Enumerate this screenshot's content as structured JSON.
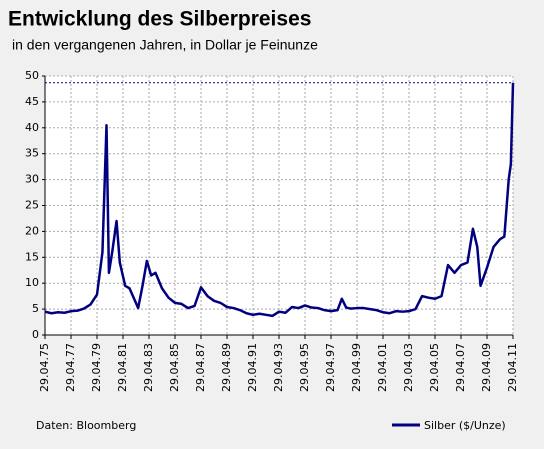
{
  "chart_data": {
    "type": "line",
    "title": "Entwicklung des Silberpreises",
    "subtitle": "in den vergangenen Jahren, in Dollar je Feinunze",
    "source": "Daten: Bloomberg",
    "x": [
      "29.04.75",
      "29.10.75",
      "29.04.76",
      "29.10.76",
      "29.04.77",
      "29.10.77",
      "29.04.78",
      "29.10.78",
      "29.04.79",
      "29.09.79",
      "21.01.80",
      "29.03.80",
      "29.06.80",
      "29.10.80",
      "29.01.81",
      "29.06.81",
      "29.10.81",
      "29.06.82",
      "29.10.82",
      "28.02.83",
      "29.06.83",
      "29.10.83",
      "29.04.84",
      "29.10.84",
      "29.04.85",
      "29.10.85",
      "29.04.86",
      "29.10.86",
      "29.04.87",
      "29.10.87",
      "29.04.88",
      "29.10.88",
      "29.04.89",
      "29.10.89",
      "29.04.90",
      "29.10.90",
      "29.04.91",
      "29.10.91",
      "29.04.92",
      "29.10.92",
      "29.04.93",
      "29.10.93",
      "29.04.94",
      "29.10.94",
      "29.04.95",
      "29.10.95",
      "29.04.96",
      "29.10.96",
      "29.04.97",
      "29.10.97",
      "27.02.98",
      "29.06.98",
      "29.10.98",
      "29.04.99",
      "29.10.99",
      "29.04.00",
      "29.10.00",
      "29.04.01",
      "29.10.01",
      "29.04.02",
      "29.10.02",
      "29.04.03",
      "29.10.03",
      "29.04.04",
      "29.10.04",
      "29.04.05",
      "29.10.05",
      "29.04.06",
      "29.10.06",
      "29.04.07",
      "29.10.07",
      "29.03.08",
      "29.07.08",
      "29.10.08",
      "29.04.09",
      "29.10.09",
      "29.04.10",
      "29.08.10",
      "29.12.10",
      "28.02.11",
      "29.04.11"
    ],
    "series": [
      {
        "name": "Silber ($/Unze)",
        "color": "#000080",
        "values": [
          4.5,
          4.2,
          4.4,
          4.3,
          4.6,
          4.7,
          5.1,
          5.9,
          7.8,
          16,
          40.5,
          12,
          16,
          22,
          14,
          9.5,
          9,
          5.2,
          9.5,
          14.3,
          11.5,
          12,
          9,
          7.2,
          6.2,
          6.0,
          5.2,
          5.6,
          9.2,
          7.5,
          6.6,
          6.2,
          5.4,
          5.2,
          4.8,
          4.2,
          3.9,
          4.1,
          3.9,
          3.7,
          4.5,
          4.3,
          5.4,
          5.2,
          5.7,
          5.3,
          5.2,
          4.8,
          4.6,
          4.8,
          7,
          5.3,
          5.1,
          5.2,
          5.2,
          5.0,
          4.8,
          4.4,
          4.2,
          4.6,
          4.5,
          4.6,
          5.0,
          7.5,
          7.2,
          7.0,
          7.5,
          13.5,
          12,
          13.5,
          14,
          20.5,
          17,
          9.5,
          13,
          17,
          18.5,
          19,
          30,
          33,
          48.7
        ]
      }
    ],
    "reference_line": 48.7,
    "xlim": [
      "29.04.75",
      "29.04.11"
    ],
    "xticks": [
      "29.04.75",
      "29.04.77",
      "29.04.79",
      "29.04.81",
      "29.04.83",
      "29.04.85",
      "29.04.87",
      "29.04.89",
      "29.04.91",
      "29.04.93",
      "29.04.95",
      "29.04.97",
      "29.04.99",
      "29.04.01",
      "29.04.03",
      "29.04.05",
      "29.04.07",
      "29.04.09",
      "29.04.11"
    ],
    "ylim": [
      0,
      50
    ],
    "yticks": [
      0,
      5,
      10,
      15,
      20,
      25,
      30,
      35,
      40,
      45,
      50
    ],
    "grid": true,
    "legend": "bottom-right"
  }
}
